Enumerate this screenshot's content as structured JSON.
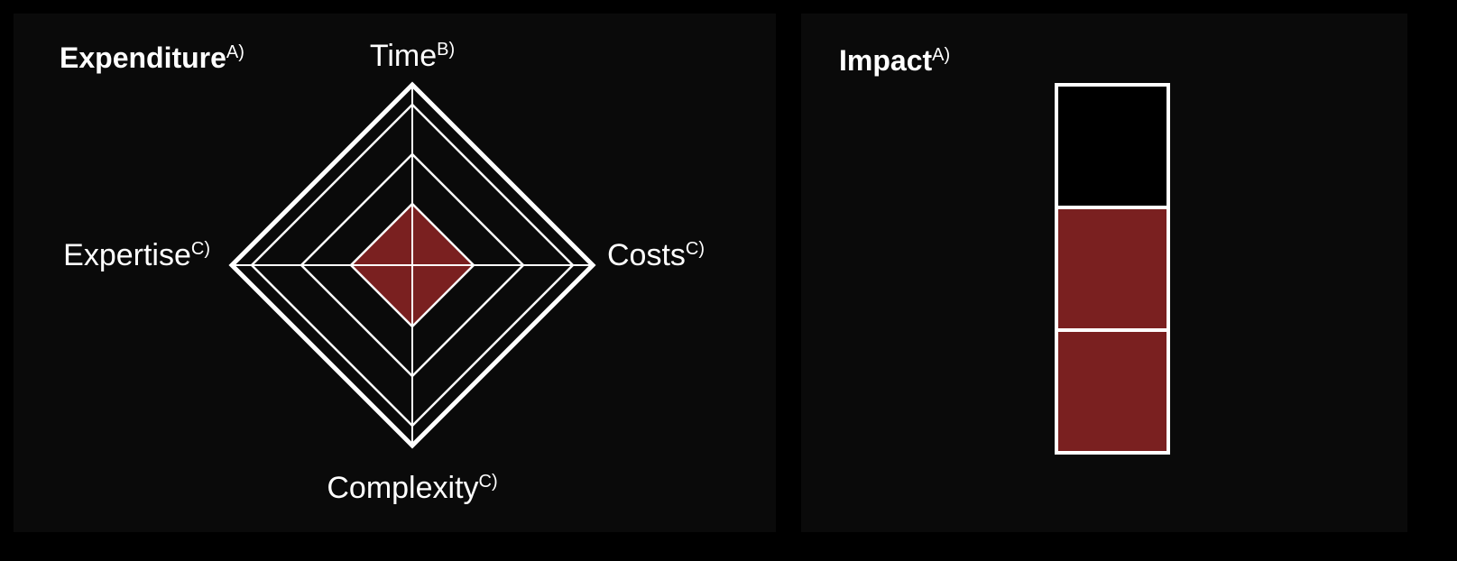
{
  "chart_data": [
    {
      "type": "radar",
      "title": "Expenditure",
      "title_note": "A)",
      "categories": [
        "Time",
        "Costs",
        "Complexity",
        "Expertise"
      ],
      "category_notes": [
        "B)",
        "C)",
        "C)",
        "C)"
      ],
      "values": [
        0.34,
        0.34,
        0.34,
        0.34
      ],
      "rlim": [
        0,
        1
      ],
      "rings": [
        0.34,
        0.615,
        0.89,
        1
      ],
      "color": "#7a2020"
    },
    {
      "type": "gauge",
      "title": "Impact",
      "title_note": "A)",
      "levels": 3,
      "value": 2,
      "color": "#7a2020"
    }
  ]
}
